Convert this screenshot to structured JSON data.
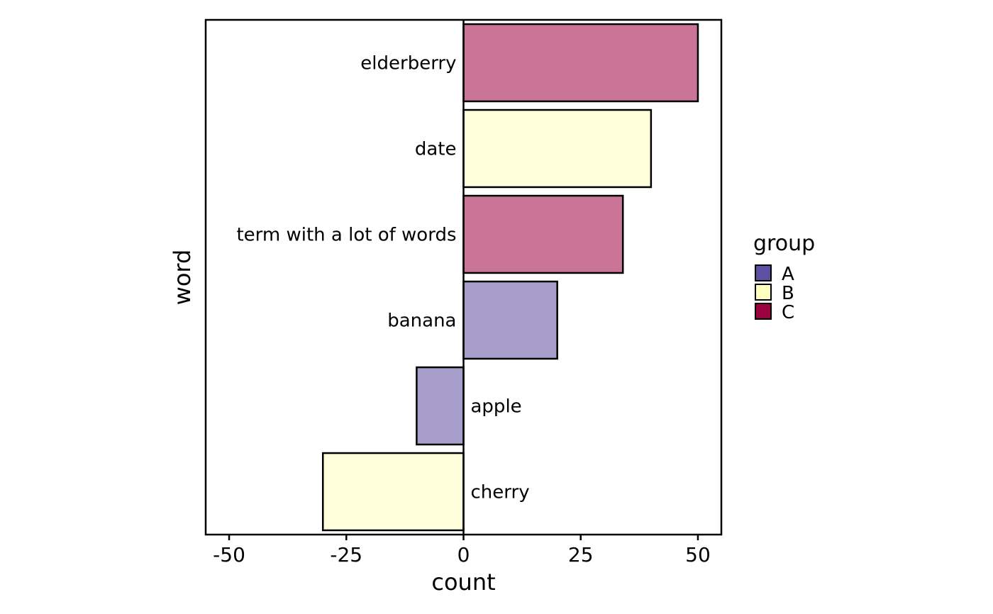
{
  "chart_data": {
    "type": "bar",
    "orientation": "horizontal",
    "xlabel": "count",
    "ylabel": "word",
    "xlim": [
      -55,
      55
    ],
    "x_ticks": [
      -50,
      -25,
      0,
      25,
      50
    ],
    "x_tick_labels": [
      "-50",
      "-25",
      "0",
      "25",
      "50"
    ],
    "categories": [
      "elderberry",
      "date",
      "term with a lot of words",
      "banana",
      "apple",
      "cherry"
    ],
    "values": [
      50,
      40,
      34,
      20,
      -10,
      -30
    ],
    "groups": [
      "C",
      "B",
      "C",
      "A",
      "A",
      "B"
    ],
    "grid": false,
    "legend": {
      "title": "group",
      "position": "right",
      "entries": [
        {
          "label": "A",
          "color": "#5E4FA2"
        },
        {
          "label": "B",
          "color": "#FFFFBF"
        },
        {
          "label": "C",
          "color": "#9E0142"
        }
      ]
    },
    "bar_fill_opacity": 0.55
  }
}
